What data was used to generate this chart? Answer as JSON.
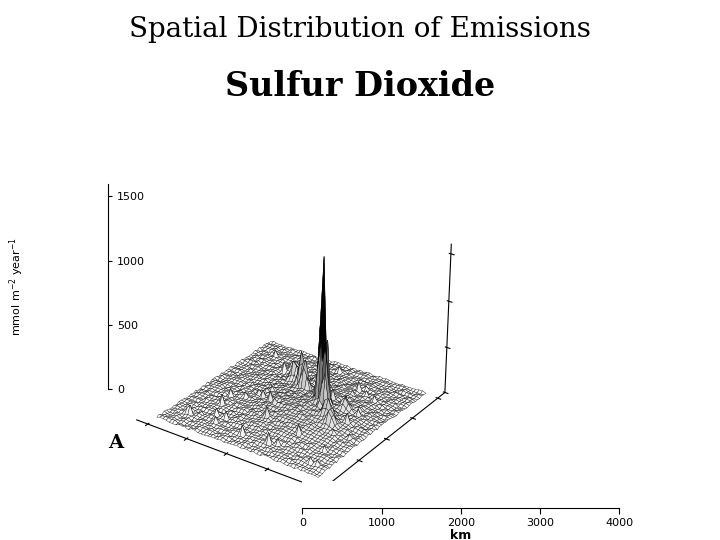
{
  "title_line1": "Spatial Distribution of Emissions",
  "title_line2": "Sulfur Dioxide",
  "zlabel": "mmol m-2 year-1",
  "xlabel_3d": "km",
  "label_A": "A",
  "zlim": [
    0,
    1600
  ],
  "zticks": [
    0,
    500,
    1000,
    1500
  ],
  "x_axis_ticks": [
    0,
    1000,
    2000,
    3000,
    4000
  ],
  "grid_size": 50,
  "background_color": "#ffffff",
  "title_fontsize": 20,
  "subtitle_fontsize": 24,
  "elev": 28,
  "azim": -55
}
